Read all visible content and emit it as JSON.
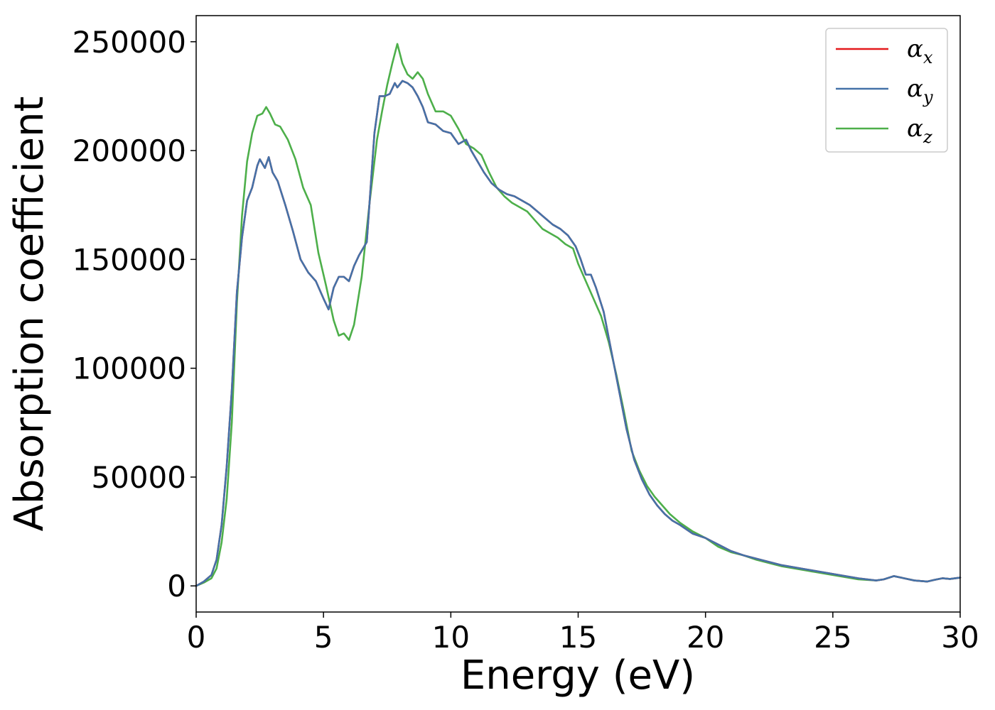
{
  "chart_data": {
    "type": "line",
    "xlabel": "Energy (eV)",
    "ylabel": "Absorption coefficient",
    "xlim": [
      0,
      30
    ],
    "ylim": [
      -12000,
      262000
    ],
    "xticks": [
      0,
      5,
      10,
      15,
      20,
      25,
      30
    ],
    "xtick_labels": [
      "0",
      "5",
      "10",
      "15",
      "20",
      "25",
      "30"
    ],
    "yticks": [
      0,
      50000,
      100000,
      150000,
      200000,
      250000
    ],
    "ytick_labels": [
      "0",
      "50000",
      "100000",
      "150000",
      "200000",
      "250000"
    ],
    "grid": false,
    "legend_position": "top-right",
    "series": [
      {
        "name": "α_x",
        "legend_base": "α",
        "legend_sub": "x",
        "color": "#e41a1c",
        "x": [
          0,
          0.3,
          0.6,
          0.8,
          1.0,
          1.2,
          1.4,
          1.6,
          1.8,
          2.0,
          2.2,
          2.4,
          2.5,
          2.7,
          2.85,
          3.0,
          3.2,
          3.5,
          3.8,
          4.1,
          4.4,
          4.7,
          5.0,
          5.2,
          5.4,
          5.6,
          5.8,
          6.0,
          6.2,
          6.4,
          6.7,
          7.0,
          7.2,
          7.4,
          7.6,
          7.8,
          7.9,
          8.1,
          8.3,
          8.5,
          8.7,
          8.9,
          9.1,
          9.4,
          9.7,
          10.0,
          10.3,
          10.6,
          10.8,
          11.0,
          11.3,
          11.6,
          11.9,
          12.2,
          12.5,
          12.8,
          13.1,
          13.4,
          13.7,
          14.0,
          14.3,
          14.6,
          14.9,
          15.1,
          15.3,
          15.5,
          15.7,
          16.0,
          16.3,
          16.6,
          16.9,
          17.2,
          17.5,
          17.8,
          18.1,
          18.4,
          18.7,
          19.0,
          19.5,
          20.0,
          20.5,
          21.0,
          21.5,
          22.0,
          22.5,
          23.0,
          24.0,
          25.0,
          26.0,
          26.7,
          27.0,
          27.4,
          27.8,
          28.2,
          28.7,
          29.0,
          29.3,
          29.6,
          30.0
        ],
        "y": [
          0,
          2000,
          5000,
          12000,
          28000,
          55000,
          90000,
          135000,
          160000,
          177000,
          183000,
          193000,
          196000,
          192000,
          197000,
          190000,
          186000,
          175000,
          163000,
          150000,
          144000,
          140000,
          132000,
          127000,
          137000,
          142000,
          142000,
          140000,
          147000,
          152000,
          158000,
          208000,
          225000,
          225000,
          226000,
          231000,
          229000,
          232000,
          231000,
          229000,
          225000,
          220000,
          213000,
          212000,
          209000,
          208000,
          203000,
          205000,
          200000,
          196000,
          190000,
          185000,
          182000,
          180000,
          179000,
          177000,
          175000,
          172000,
          169000,
          166000,
          164000,
          161000,
          156000,
          150000,
          143000,
          143000,
          137000,
          126000,
          108000,
          90000,
          72000,
          58000,
          49000,
          42000,
          37000,
          33000,
          30000,
          28000,
          24000,
          22000,
          19000,
          16000,
          14000,
          12500,
          11000,
          9500,
          7500,
          5500,
          3500,
          2500,
          3000,
          4500,
          3500,
          2500,
          2000,
          2800,
          3500,
          3200,
          3800
        ]
      },
      {
        "name": "α_y",
        "legend_base": "α",
        "legend_sub": "y",
        "color": "#4472a8",
        "x": [
          0,
          0.3,
          0.6,
          0.8,
          1.0,
          1.2,
          1.4,
          1.6,
          1.8,
          2.0,
          2.2,
          2.4,
          2.5,
          2.7,
          2.85,
          3.0,
          3.2,
          3.5,
          3.8,
          4.1,
          4.4,
          4.7,
          5.0,
          5.2,
          5.4,
          5.6,
          5.8,
          6.0,
          6.2,
          6.4,
          6.7,
          7.0,
          7.2,
          7.4,
          7.6,
          7.8,
          7.9,
          8.1,
          8.3,
          8.5,
          8.7,
          8.9,
          9.1,
          9.4,
          9.7,
          10.0,
          10.3,
          10.6,
          10.8,
          11.0,
          11.3,
          11.6,
          11.9,
          12.2,
          12.5,
          12.8,
          13.1,
          13.4,
          13.7,
          14.0,
          14.3,
          14.6,
          14.9,
          15.1,
          15.3,
          15.5,
          15.7,
          16.0,
          16.3,
          16.6,
          16.9,
          17.2,
          17.5,
          17.8,
          18.1,
          18.4,
          18.7,
          19.0,
          19.5,
          20.0,
          20.5,
          21.0,
          21.5,
          22.0,
          22.5,
          23.0,
          24.0,
          25.0,
          26.0,
          26.7,
          27.0,
          27.4,
          27.8,
          28.2,
          28.7,
          29.0,
          29.3,
          29.6,
          30.0
        ],
        "y": [
          0,
          2000,
          5000,
          12000,
          28000,
          55000,
          90000,
          135000,
          160000,
          177000,
          183000,
          193000,
          196000,
          192000,
          197000,
          190000,
          186000,
          175000,
          163000,
          150000,
          144000,
          140000,
          132000,
          127000,
          137000,
          142000,
          142000,
          140000,
          147000,
          152000,
          158000,
          208000,
          225000,
          225000,
          226000,
          231000,
          229000,
          232000,
          231000,
          229000,
          225000,
          220000,
          213000,
          212000,
          209000,
          208000,
          203000,
          205000,
          200000,
          196000,
          190000,
          185000,
          182000,
          180000,
          179000,
          177000,
          175000,
          172000,
          169000,
          166000,
          164000,
          161000,
          156000,
          150000,
          143000,
          143000,
          137000,
          126000,
          108000,
          90000,
          72000,
          58000,
          49000,
          42000,
          37000,
          33000,
          30000,
          28000,
          24000,
          22000,
          19000,
          16000,
          14000,
          12500,
          11000,
          9500,
          7500,
          5500,
          3500,
          2500,
          3000,
          4500,
          3500,
          2500,
          2000,
          2800,
          3500,
          3200,
          3800
        ]
      },
      {
        "name": "α_z",
        "legend_base": "α",
        "legend_sub": "z",
        "color": "#4daf4a",
        "x": [
          0,
          0.3,
          0.6,
          0.8,
          1.0,
          1.2,
          1.4,
          1.6,
          1.8,
          2.0,
          2.2,
          2.4,
          2.6,
          2.75,
          2.9,
          3.1,
          3.3,
          3.6,
          3.9,
          4.2,
          4.5,
          4.8,
          5.1,
          5.4,
          5.6,
          5.8,
          6.0,
          6.2,
          6.5,
          6.8,
          7.1,
          7.3,
          7.5,
          7.7,
          7.9,
          8.1,
          8.3,
          8.5,
          8.7,
          8.9,
          9.1,
          9.4,
          9.7,
          10.0,
          10.3,
          10.6,
          10.9,
          11.2,
          11.5,
          11.8,
          12.1,
          12.4,
          12.7,
          13.0,
          13.3,
          13.6,
          13.9,
          14.2,
          14.5,
          14.8,
          15.0,
          15.3,
          15.6,
          15.9,
          16.2,
          16.5,
          16.8,
          17.1,
          17.4,
          17.7,
          18.0,
          18.3,
          18.6,
          19.0,
          19.5,
          20.0,
          20.5,
          21.0,
          21.5,
          22.0,
          22.5,
          23.0,
          24.0,
          25.0,
          26.0,
          26.7,
          27.0,
          27.4,
          27.8,
          28.2,
          28.7,
          29.0,
          29.3,
          29.6,
          30.0
        ],
        "y": [
          0,
          1500,
          3500,
          8000,
          20000,
          40000,
          75000,
          130000,
          170000,
          195000,
          208000,
          216000,
          217000,
          220000,
          217000,
          212000,
          211000,
          205000,
          196000,
          183000,
          175000,
          153000,
          138000,
          122000,
          115000,
          116000,
          113000,
          120000,
          142000,
          175000,
          205000,
          218000,
          230000,
          240000,
          249000,
          240000,
          235000,
          233000,
          236000,
          233000,
          226000,
          218000,
          218000,
          216000,
          210000,
          203000,
          201000,
          198000,
          190000,
          183000,
          179000,
          176000,
          174000,
          172000,
          168000,
          164000,
          162000,
          160000,
          157000,
          155000,
          148000,
          140000,
          132000,
          124000,
          112000,
          97000,
          80000,
          62000,
          53000,
          46000,
          41000,
          37000,
          33000,
          29000,
          25000,
          22000,
          18000,
          15500,
          14000,
          12000,
          10500,
          9000,
          7000,
          5000,
          3000,
          2500,
          3000,
          4500,
          3500,
          2500,
          2000,
          2800,
          3500,
          3200,
          3800
        ]
      }
    ]
  }
}
